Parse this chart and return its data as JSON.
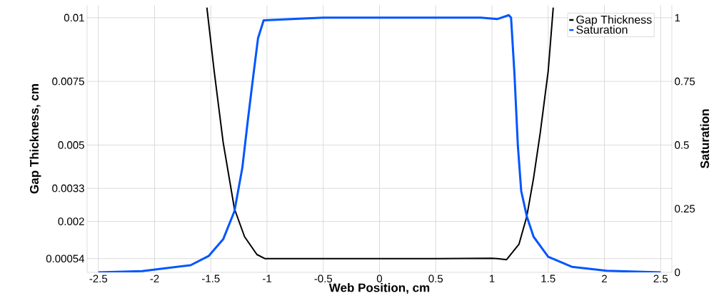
{
  "chart_data": {
    "type": "line",
    "xlabel": "Web Position, cm",
    "ylabel": "Gap Thickness, cm",
    "y2label": "Saturation",
    "xlim": [
      -2.6,
      2.6
    ],
    "xticks": [
      -2.5,
      -2,
      -1.5,
      -1,
      -0.5,
      0,
      0.5,
      1,
      1.5,
      2,
      2.5
    ],
    "ylim": [
      0,
      0.0105
    ],
    "yticks": [
      0.00054,
      0.002,
      0.0033,
      0.005,
      0.0075,
      0.01
    ],
    "y2lim": [
      0,
      1.05
    ],
    "y2ticks": [
      0,
      0.25,
      0.5,
      0.75,
      1
    ],
    "grid": true,
    "legend": "top right",
    "marker": "none",
    "line_style": "solid",
    "series": [
      {
        "name": "Gap Thickness",
        "color": "#000000",
        "x": [
          -1.535,
          -1.47,
          -1.39,
          -1.29,
          -1.2,
          -1.09,
          -1.02,
          -0.5,
          0,
          0.5,
          1.0,
          1.05,
          1.13,
          1.24,
          1.31,
          1.37,
          1.43,
          1.5,
          1.545
        ],
        "values": [
          0.0104,
          0.0079,
          0.0051,
          0.0025,
          0.0014,
          0.0007,
          0.00054,
          0.00054,
          0.00054,
          0.00054,
          0.00055,
          0.00054,
          0.0005,
          0.0011,
          0.0022,
          0.0037,
          0.0055,
          0.0079,
          0.0104
        ]
      },
      {
        "name": "Saturation",
        "color": "#0055ff",
        "axis": "y2",
        "x": [
          -2.5,
          -2.11,
          -1.68,
          -1.52,
          -1.39,
          -1.29,
          -1.22,
          -1.17,
          -1.12,
          -1.08,
          -1.03,
          -0.5,
          0,
          0.5,
          0.9,
          1.05,
          1.15,
          1.17,
          1.2,
          1.23,
          1.26,
          1.31,
          1.37,
          1.5,
          1.71,
          2.02,
          2.5
        ],
        "values": [
          0.0,
          0.005,
          0.028,
          0.064,
          0.13,
          0.24,
          0.41,
          0.6,
          0.78,
          0.92,
          0.99,
          1.0,
          1.0,
          1.0,
          1.0,
          0.995,
          1.01,
          1.0,
          0.78,
          0.5,
          0.32,
          0.22,
          0.14,
          0.061,
          0.022,
          0.006,
          0.0
        ]
      }
    ]
  }
}
